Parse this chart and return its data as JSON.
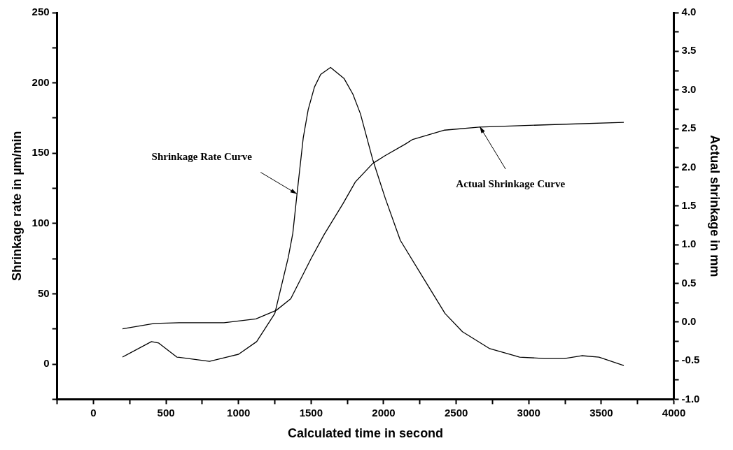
{
  "chart_data": {
    "type": "line",
    "xlabel": "Calculated time in second",
    "ylabel": "Shrinkage rate in µm/min",
    "y2label": "Actual shrinkage in mm",
    "xlim": [
      -250,
      4000
    ],
    "xticks": [
      {
        "value": -250,
        "label": null
      },
      0,
      {
        "value": 250,
        "label": null
      },
      500,
      {
        "value": 750,
        "label": null
      },
      1000,
      {
        "value": 1250,
        "label": null
      },
      1500,
      {
        "value": 1750,
        "label": null
      },
      2000,
      {
        "value": 2250,
        "label": null
      },
      2500,
      {
        "value": 2750,
        "label": null
      },
      3000,
      {
        "value": 3250,
        "label": null
      },
      3500,
      {
        "value": 3750,
        "label": null
      },
      4000
    ],
    "ylim": [
      -25,
      250
    ],
    "yticks": [
      {
        "value": -25,
        "label": null
      },
      0,
      {
        "value": 25,
        "label": null
      },
      50,
      {
        "value": 75,
        "label": null
      },
      100,
      {
        "value": 125,
        "label": null
      },
      150,
      {
        "value": 175,
        "label": null
      },
      200,
      {
        "value": 225,
        "label": null
      },
      250
    ],
    "y2lim": [
      -1,
      4
    ],
    "y2ticks": [
      {
        "value": -1,
        "label": "-1.0"
      },
      {
        "value": -0.75,
        "label": null
      },
      {
        "value": -0.5,
        "label": "-0.5"
      },
      {
        "value": -0.25,
        "label": null
      },
      {
        "value": 0,
        "label": "0.0"
      },
      {
        "value": 0.25,
        "label": null
      },
      {
        "value": 0.5,
        "label": "0.5"
      },
      {
        "value": 0.75,
        "label": null
      },
      {
        "value": 1,
        "label": "1.0"
      },
      {
        "value": 1.25,
        "label": null
      },
      {
        "value": 1.5,
        "label": "1.5"
      },
      {
        "value": 1.75,
        "label": null
      },
      {
        "value": 2,
        "label": "2.0"
      },
      {
        "value": 2.25,
        "label": null
      },
      {
        "value": 2.5,
        "label": "2.5"
      },
      {
        "value": 2.75,
        "label": null
      },
      {
        "value": 3,
        "label": "3.0"
      },
      {
        "value": 3.25,
        "label": null
      },
      {
        "value": 3.5,
        "label": "3.5"
      },
      {
        "value": 3.75,
        "label": null
      },
      {
        "value": 4,
        "label": "4.0"
      }
    ],
    "annotations": [
      {
        "text": "Shrinkage Rate Curve",
        "x": 1403,
        "y": 121
      },
      {
        "text": "Actual Shrinkage Curve",
        "x": 2662,
        "y": 169
      }
    ],
    "grid": false,
    "legend": false,
    "marker": "none",
    "line_style": "solid",
    "series": [
      {
        "color": "#000000",
        "x": [
          200,
          400,
          450,
          575,
          800,
          1000,
          1125,
          1250,
          1343,
          1374,
          1403,
          1446,
          1480,
          1523,
          1566,
          1634,
          1728,
          1788,
          1840,
          1926,
          2011,
          2115,
          2269,
          2423,
          2543,
          2731,
          2937,
          3108,
          3245,
          3365,
          3484,
          3655
        ],
        "values": [
          5,
          16,
          15,
          5,
          2,
          7,
          16,
          36,
          76,
          93,
          121,
          161,
          181,
          197,
          206,
          211,
          203,
          192,
          178,
          145,
          118,
          88,
          62,
          36,
          23,
          11,
          5,
          4,
          4,
          6,
          5,
          -1
        ]
      },
      {
        "color": "#000000",
        "axis": "y2",
        "x": [
          200,
          420,
          600,
          900,
          1120,
          1260,
          1360,
          1500,
          1590,
          1720,
          1805,
          1925,
          2010,
          2150,
          2200,
          2420,
          2660,
          3140,
          3655
        ],
        "values": [
          -0.09,
          -0.02,
          -0.01,
          -0.01,
          0.04,
          0.15,
          0.3,
          0.82,
          1.13,
          1.53,
          1.81,
          2.05,
          2.15,
          2.3,
          2.36,
          2.48,
          2.52,
          2.55,
          2.58
        ]
      }
    ]
  }
}
